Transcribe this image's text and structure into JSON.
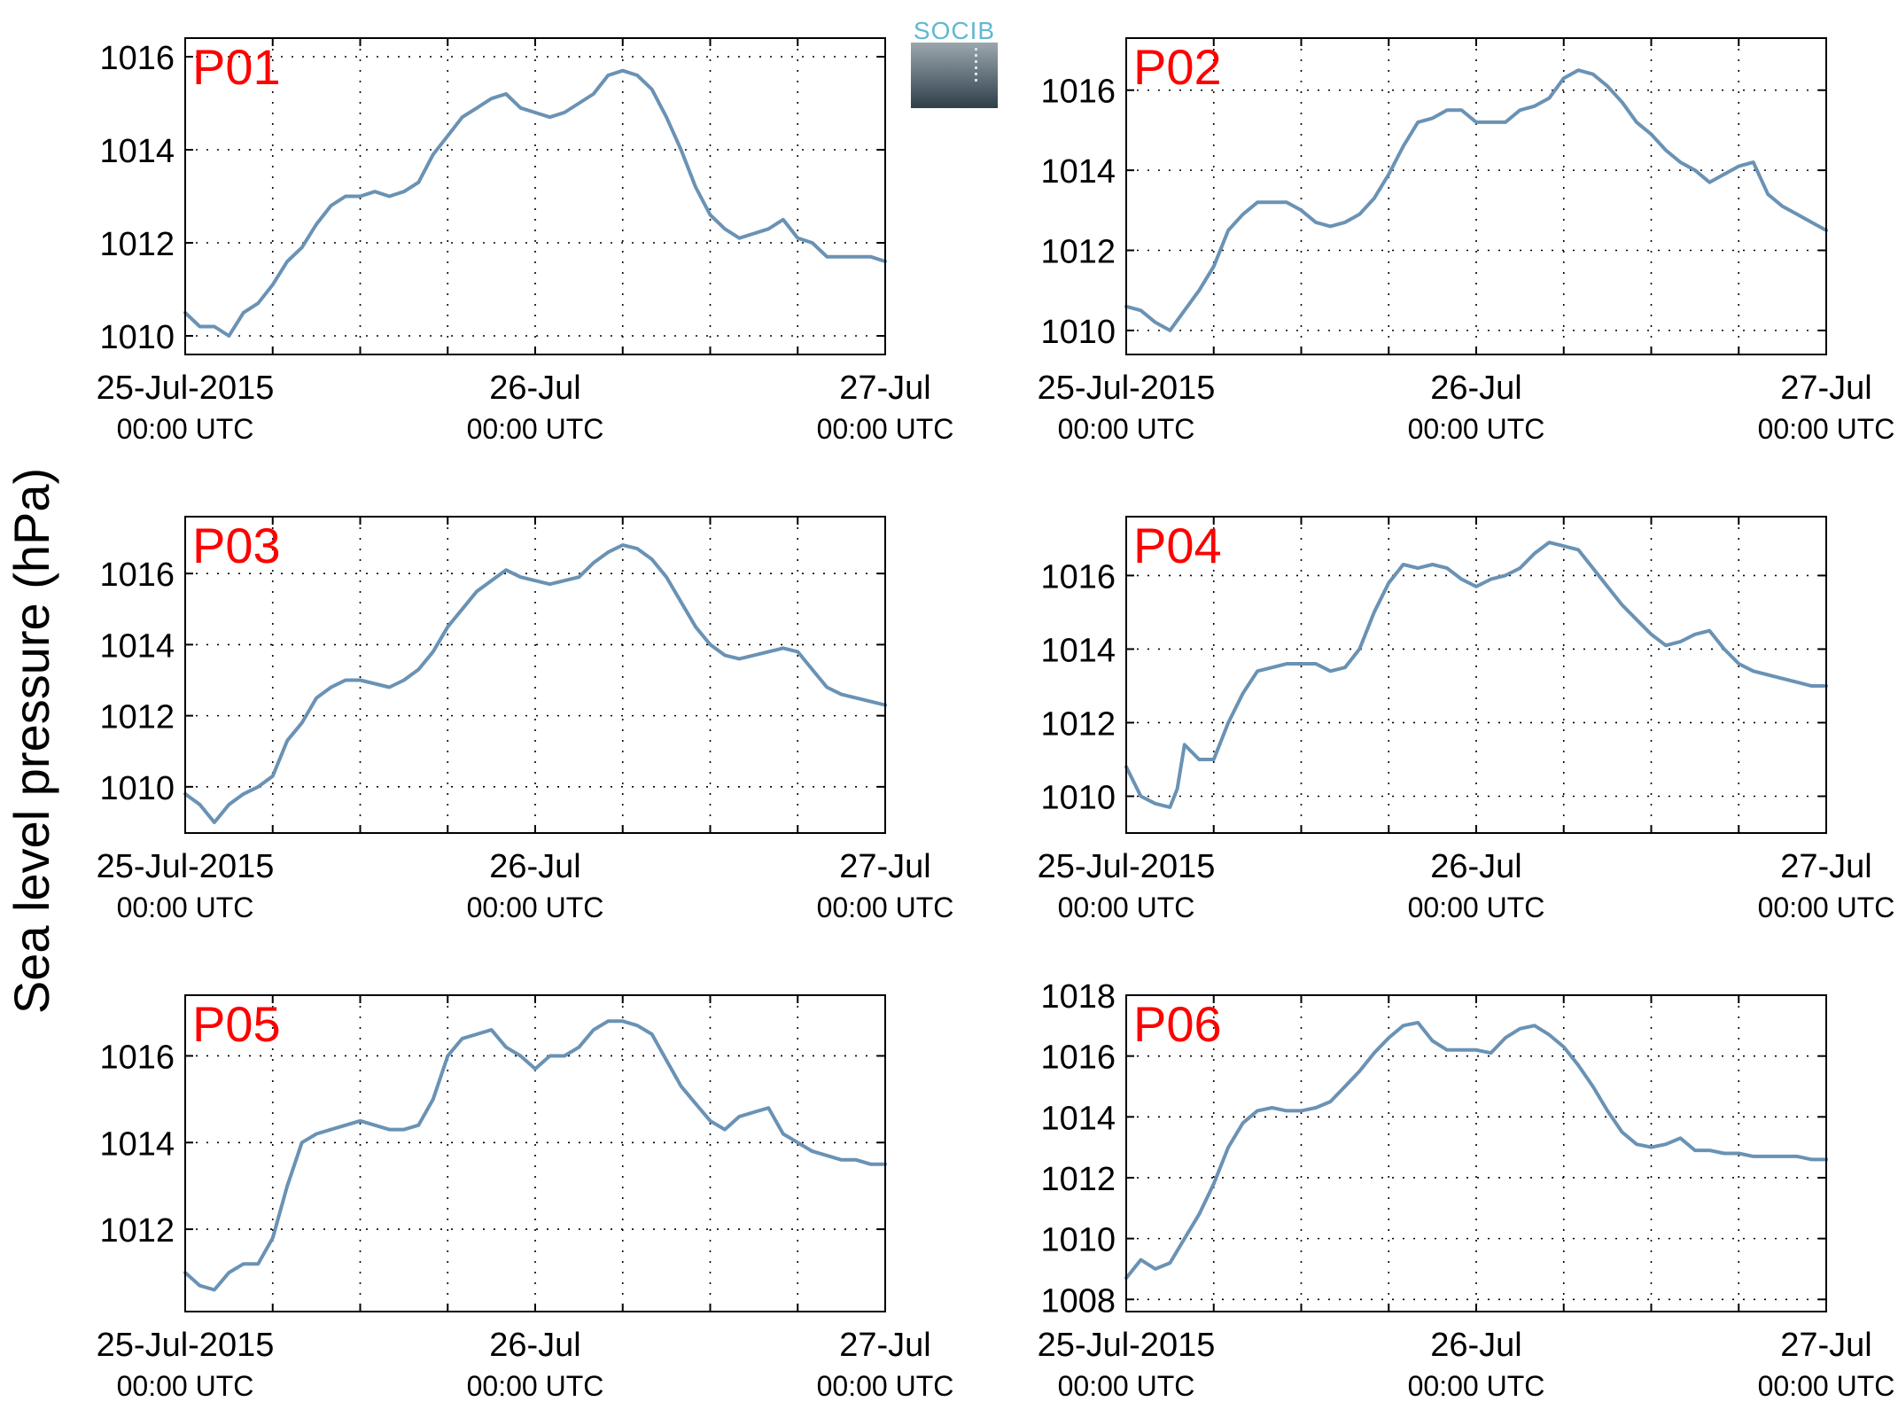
{
  "figure": {
    "ylabel": "Sea level pressure (hPa)",
    "logo_text": "SOCIB",
    "series_color": "#6a92b4",
    "label_color": "#ff0000"
  },
  "chart_data": [
    {
      "type": "line",
      "name": "P01",
      "x": [
        0,
        1,
        2,
        3,
        4,
        5,
        6,
        7,
        8,
        9,
        10,
        11,
        12,
        13,
        14,
        15,
        16,
        17,
        18,
        19,
        20,
        21,
        22,
        23,
        24,
        25,
        26,
        27,
        28,
        29,
        30,
        31,
        32,
        33,
        34,
        35,
        36,
        37,
        38,
        39,
        40,
        41,
        42,
        43,
        44,
        45,
        46,
        47,
        48
      ],
      "y": [
        1010.5,
        1010.2,
        1010.2,
        1010.0,
        1010.5,
        1010.7,
        1011.1,
        1011.6,
        1011.9,
        1012.4,
        1012.8,
        1013.0,
        1013.0,
        1013.1,
        1013.0,
        1013.1,
        1013.3,
        1013.9,
        1014.3,
        1014.7,
        1014.9,
        1015.1,
        1015.2,
        1014.9,
        1014.8,
        1014.7,
        1014.8,
        1015.0,
        1015.2,
        1015.6,
        1015.7,
        1015.6,
        1015.3,
        1014.7,
        1014.0,
        1013.2,
        1012.6,
        1012.3,
        1012.1,
        1012.2,
        1012.3,
        1012.5,
        1012.1,
        1012.0,
        1011.7,
        1011.7,
        1011.7,
        1011.7,
        1011.6
      ],
      "yticks": [
        1010,
        1012,
        1014,
        1016
      ],
      "ylim": [
        1009.6,
        1016.4
      ],
      "xlim": [
        0,
        48
      ],
      "xticks": [
        0,
        6,
        12,
        18,
        24,
        30,
        36,
        42,
        48
      ],
      "xtick_labels": [
        {
          "at": 0,
          "date": "25-Jul-2015",
          "time": "00:00 UTC"
        },
        {
          "at": 24,
          "date": "26-Jul",
          "time": "00:00 UTC"
        },
        {
          "at": 48,
          "date": "27-Jul",
          "time": "00:00 UTC"
        }
      ],
      "grid": true
    },
    {
      "type": "line",
      "name": "P02",
      "x": [
        0,
        1,
        2,
        3,
        4,
        5,
        6,
        7,
        8,
        9,
        10,
        11,
        12,
        13,
        14,
        15,
        16,
        17,
        18,
        19,
        20,
        21,
        22,
        23,
        24,
        25,
        26,
        27,
        28,
        29,
        30,
        31,
        32,
        33,
        34,
        35,
        36,
        37,
        38,
        39,
        40,
        41,
        42,
        43,
        44,
        45,
        46,
        47,
        48
      ],
      "y": [
        1010.6,
        1010.5,
        1010.2,
        1010.0,
        1010.5,
        1011.0,
        1011.6,
        1012.5,
        1012.9,
        1013.2,
        1013.2,
        1013.2,
        1013.0,
        1012.7,
        1012.6,
        1012.7,
        1012.9,
        1013.3,
        1013.9,
        1014.6,
        1015.2,
        1015.3,
        1015.5,
        1015.5,
        1015.2,
        1015.2,
        1015.2,
        1015.5,
        1015.6,
        1015.8,
        1016.3,
        1016.5,
        1016.4,
        1016.1,
        1015.7,
        1015.2,
        1014.9,
        1014.5,
        1014.2,
        1014.0,
        1013.7,
        1013.9,
        1014.1,
        1014.2,
        1013.4,
        1013.1,
        1012.9,
        1012.7,
        1012.5
      ],
      "yticks": [
        1010,
        1012,
        1014,
        1016
      ],
      "ylim": [
        1009.4,
        1017.3
      ],
      "xlim": [
        0,
        48
      ],
      "xticks": [
        0,
        6,
        12,
        18,
        24,
        30,
        36,
        42,
        48
      ],
      "xtick_labels": [
        {
          "at": 0,
          "date": "25-Jul-2015",
          "time": "00:00 UTC"
        },
        {
          "at": 24,
          "date": "26-Jul",
          "time": "00:00 UTC"
        },
        {
          "at": 48,
          "date": "27-Jul",
          "time": "00:00 UTC"
        }
      ],
      "grid": true
    },
    {
      "type": "line",
      "name": "P03",
      "x": [
        0,
        1,
        2,
        3,
        4,
        5,
        6,
        7,
        8,
        9,
        10,
        11,
        12,
        13,
        14,
        15,
        16,
        17,
        18,
        19,
        20,
        21,
        22,
        23,
        24,
        25,
        26,
        27,
        28,
        29,
        30,
        31,
        32,
        33,
        34,
        35,
        36,
        37,
        38,
        39,
        40,
        41,
        42,
        43,
        44,
        45,
        46,
        47,
        48
      ],
      "y": [
        1009.8,
        1009.5,
        1009.0,
        1009.5,
        1009.8,
        1010.0,
        1010.3,
        1011.3,
        1011.8,
        1012.5,
        1012.8,
        1013.0,
        1013.0,
        1012.9,
        1012.8,
        1013.0,
        1013.3,
        1013.8,
        1014.5,
        1015.0,
        1015.5,
        1015.8,
        1016.1,
        1015.9,
        1015.8,
        1015.7,
        1015.8,
        1015.9,
        1016.3,
        1016.6,
        1016.8,
        1016.7,
        1016.4,
        1015.9,
        1015.2,
        1014.5,
        1014.0,
        1013.7,
        1013.6,
        1013.7,
        1013.8,
        1013.9,
        1013.8,
        1013.3,
        1012.8,
        1012.6,
        1012.5,
        1012.4,
        1012.3
      ],
      "yticks": [
        1010,
        1012,
        1014,
        1016
      ],
      "ylim": [
        1008.7,
        1017.6
      ],
      "xlim": [
        0,
        48
      ],
      "xticks": [
        0,
        6,
        12,
        18,
        24,
        30,
        36,
        42,
        48
      ],
      "xtick_labels": [
        {
          "at": 0,
          "date": "25-Jul-2015",
          "time": "00:00 UTC"
        },
        {
          "at": 24,
          "date": "26-Jul",
          "time": "00:00 UTC"
        },
        {
          "at": 48,
          "date": "27-Jul",
          "time": "00:00 UTC"
        }
      ],
      "grid": true
    },
    {
      "type": "line",
      "name": "P04",
      "x": [
        0,
        1,
        2,
        3,
        3.5,
        4,
        5,
        6,
        7,
        8,
        9,
        10,
        11,
        12,
        13,
        14,
        15,
        16,
        17,
        18,
        19,
        20,
        21,
        22,
        23,
        24,
        25,
        26,
        27,
        28,
        29,
        30,
        31,
        32,
        33,
        34,
        35,
        36,
        37,
        38,
        39,
        40,
        41,
        42,
        43,
        44,
        45,
        46,
        47,
        48
      ],
      "y": [
        1010.8,
        1010.0,
        1009.8,
        1009.7,
        1010.2,
        1011.4,
        1011.0,
        1011.0,
        1012.0,
        1012.8,
        1013.4,
        1013.5,
        1013.6,
        1013.6,
        1013.6,
        1013.4,
        1013.5,
        1014.0,
        1015.0,
        1015.8,
        1016.3,
        1016.2,
        1016.3,
        1016.2,
        1015.9,
        1015.7,
        1015.9,
        1016.0,
        1016.2,
        1016.6,
        1016.9,
        1016.8,
        1016.7,
        1016.2,
        1015.7,
        1015.2,
        1014.8,
        1014.4,
        1014.1,
        1014.2,
        1014.4,
        1014.5,
        1014.0,
        1013.6,
        1013.4,
        1013.3,
        1013.2,
        1013.1,
        1013.0,
        1013.0
      ],
      "yticks": [
        1010,
        1012,
        1014,
        1016
      ],
      "ylim": [
        1009.0,
        1017.6
      ],
      "xlim": [
        0,
        48
      ],
      "xticks": [
        0,
        6,
        12,
        18,
        24,
        30,
        36,
        42,
        48
      ],
      "xtick_labels": [
        {
          "at": 0,
          "date": "25-Jul-2015",
          "time": "00:00 UTC"
        },
        {
          "at": 24,
          "date": "26-Jul",
          "time": "00:00 UTC"
        },
        {
          "at": 48,
          "date": "27-Jul",
          "time": "00:00 UTC"
        }
      ],
      "grid": true
    },
    {
      "type": "line",
      "name": "P05",
      "x": [
        0,
        1,
        2,
        3,
        4,
        5,
        6,
        7,
        8,
        9,
        10,
        11,
        12,
        13,
        14,
        15,
        16,
        17,
        18,
        19,
        20,
        21,
        22,
        23,
        24,
        25,
        26,
        27,
        28,
        29,
        30,
        31,
        32,
        33,
        34,
        35,
        36,
        37,
        38,
        39,
        40,
        41,
        42,
        43,
        44,
        45,
        46,
        47,
        48
      ],
      "y": [
        1011.0,
        1010.7,
        1010.6,
        1011.0,
        1011.2,
        1011.2,
        1011.8,
        1013.0,
        1014.0,
        1014.2,
        1014.3,
        1014.4,
        1014.5,
        1014.4,
        1014.3,
        1014.3,
        1014.4,
        1015.0,
        1016.0,
        1016.4,
        1016.5,
        1016.6,
        1016.2,
        1016.0,
        1015.7,
        1016.0,
        1016.0,
        1016.2,
        1016.6,
        1016.8,
        1016.8,
        1016.7,
        1016.5,
        1015.9,
        1015.3,
        1014.9,
        1014.5,
        1014.3,
        1014.6,
        1014.7,
        1014.8,
        1014.2,
        1014.0,
        1013.8,
        1013.7,
        1013.6,
        1013.6,
        1013.5,
        1013.5
      ],
      "yticks": [
        1012,
        1014,
        1016
      ],
      "ylim": [
        1010.1,
        1017.4
      ],
      "xlim": [
        0,
        48
      ],
      "xticks": [
        0,
        6,
        12,
        18,
        24,
        30,
        36,
        42,
        48
      ],
      "xtick_labels": [
        {
          "at": 0,
          "date": "25-Jul-2015",
          "time": "00:00 UTC"
        },
        {
          "at": 24,
          "date": "26-Jul",
          "time": "00:00 UTC"
        },
        {
          "at": 48,
          "date": "27-Jul",
          "time": "00:00 UTC"
        }
      ],
      "grid": true
    },
    {
      "type": "line",
      "name": "P06",
      "x": [
        0,
        1,
        2,
        3,
        4,
        5,
        6,
        7,
        8,
        9,
        10,
        11,
        12,
        13,
        14,
        15,
        16,
        17,
        18,
        19,
        20,
        21,
        22,
        23,
        24,
        25,
        26,
        27,
        28,
        29,
        30,
        31,
        32,
        33,
        34,
        35,
        36,
        37,
        38,
        39,
        40,
        41,
        42,
        43,
        44,
        45,
        46,
        47,
        48
      ],
      "y": [
        1008.7,
        1009.3,
        1009.0,
        1009.2,
        1010.0,
        1010.8,
        1011.8,
        1013.0,
        1013.8,
        1014.2,
        1014.3,
        1014.2,
        1014.2,
        1014.3,
        1014.5,
        1015.0,
        1015.5,
        1016.1,
        1016.6,
        1017.0,
        1017.1,
        1016.5,
        1016.2,
        1016.2,
        1016.2,
        1016.1,
        1016.6,
        1016.9,
        1017.0,
        1016.7,
        1016.3,
        1015.7,
        1015.0,
        1014.2,
        1013.5,
        1013.1,
        1013.0,
        1013.1,
        1013.3,
        1012.9,
        1012.9,
        1012.8,
        1012.8,
        1012.7,
        1012.7,
        1012.7,
        1012.7,
        1012.6,
        1012.6
      ],
      "yticks": [
        1008,
        1010,
        1012,
        1014,
        1016,
        1018
      ],
      "ylim": [
        1007.6,
        1018.0
      ],
      "xlim": [
        0,
        48
      ],
      "xticks": [
        0,
        6,
        12,
        18,
        24,
        30,
        36,
        42,
        48
      ],
      "xtick_labels": [
        {
          "at": 0,
          "date": "25-Jul-2015",
          "time": "00:00 UTC"
        },
        {
          "at": 24,
          "date": "26-Jul",
          "time": "00:00 UTC"
        },
        {
          "at": 48,
          "date": "27-Jul",
          "time": "00:00 UTC"
        }
      ],
      "grid": true
    }
  ]
}
